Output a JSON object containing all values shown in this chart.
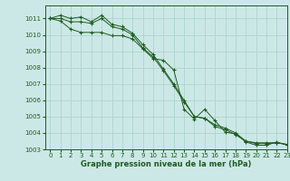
{
  "title": "Graphe pression niveau de la mer (hPa)",
  "background_color": "#cce8e6",
  "grid_color": "#aed4d0",
  "line_color": "#1e5c1e",
  "xlim": [
    -0.5,
    23
  ],
  "ylim": [
    1003,
    1011.8
  ],
  "yticks": [
    1003,
    1004,
    1005,
    1006,
    1007,
    1008,
    1009,
    1010,
    1011
  ],
  "xticks": [
    0,
    1,
    2,
    3,
    4,
    5,
    6,
    7,
    8,
    9,
    10,
    11,
    12,
    13,
    14,
    15,
    16,
    17,
    18,
    19,
    20,
    21,
    22,
    23
  ],
  "series1_y": [
    1011.0,
    1011.2,
    1011.0,
    1011.1,
    1010.8,
    1011.2,
    1010.65,
    1010.5,
    1010.1,
    1009.4,
    1008.8,
    1007.9,
    1007.0,
    1006.0,
    1005.0,
    1004.9,
    1004.5,
    1004.3,
    1004.0,
    1003.5,
    1003.4,
    1003.4,
    1003.4,
    1003.3
  ],
  "series2_y": [
    1011.0,
    1011.0,
    1010.8,
    1010.8,
    1010.7,
    1011.0,
    1010.5,
    1010.35,
    1010.0,
    1009.2,
    1008.65,
    1007.8,
    1006.9,
    1005.9,
    1005.0,
    1004.9,
    1004.4,
    1004.2,
    1003.9,
    1003.5,
    1003.35,
    1003.35,
    1003.4,
    1003.3
  ],
  "series3_y": [
    1011.0,
    1010.85,
    1010.35,
    1010.15,
    1010.15,
    1010.15,
    1009.95,
    1009.95,
    1009.75,
    1009.15,
    1008.55,
    1008.45,
    1007.85,
    1005.45,
    1004.85,
    1005.45,
    1004.75,
    1004.05,
    1003.95,
    1003.45,
    1003.25,
    1003.25,
    1003.45,
    1003.25
  ]
}
